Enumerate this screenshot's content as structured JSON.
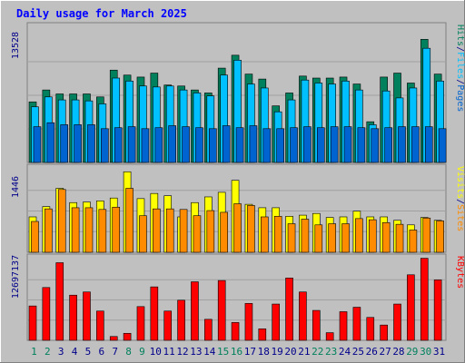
{
  "chart_data": {
    "type": "bar",
    "title": "Daily usage for March 2025",
    "categories": [
      "1",
      "2",
      "3",
      "4",
      "5",
      "6",
      "7",
      "8",
      "9",
      "10",
      "11",
      "12",
      "13",
      "14",
      "15",
      "16",
      "17",
      "18",
      "19",
      "20",
      "21",
      "22",
      "23",
      "24",
      "25",
      "26",
      "27",
      "28",
      "29",
      "30",
      "31"
    ],
    "weekend_days": [
      "1",
      "2",
      "8",
      "9",
      "15",
      "16",
      "22",
      "23",
      "29",
      "30"
    ],
    "panels": [
      {
        "id": "hits-files-pages",
        "ymax_label": "13528",
        "ymax": 13528,
        "side_labels": [
          "Pages",
          "Files",
          "Hits"
        ],
        "series": [
          {
            "name": "Hits",
            "color": "#00805c",
            "values": [
              6100,
              7300,
              6900,
              6900,
              6900,
              6600,
              9300,
              8800,
              8600,
              9000,
              7800,
              7700,
              7300,
              7000,
              9500,
              10800,
              8900,
              8400,
              5700,
              7000,
              8700,
              8500,
              8500,
              8600,
              7900,
              4100,
              8600,
              9000,
              8000,
              12400,
              8900
            ]
          },
          {
            "name": "Files",
            "color": "#00c0ff",
            "values": [
              5600,
              6600,
              6300,
              6300,
              6200,
              5900,
              8500,
              8200,
              7700,
              7600,
              7700,
              7300,
              7000,
              6700,
              8800,
              10300,
              7900,
              7500,
              5100,
              6300,
              8300,
              8000,
              7900,
              8200,
              7300,
              3800,
              7200,
              6500,
              7500,
              11500,
              8200
            ]
          },
          {
            "name": "Pages",
            "color": "#0064d0",
            "values": [
              3600,
              4000,
              3800,
              3800,
              3800,
              3400,
              3500,
              3600,
              3400,
              3500,
              3700,
              3600,
              3500,
              3400,
              3700,
              3500,
              3700,
              3400,
              3400,
              3500,
              3600,
              3500,
              3600,
              3600,
              3500,
              3400,
              3500,
              3600,
              3600,
              3600,
              3400
            ]
          }
        ]
      },
      {
        "id": "visits-sites",
        "ymax_label": "1446",
        "ymax": 1446,
        "side_labels": [
          "Sites",
          "Visits"
        ],
        "series": [
          {
            "name": "Visits",
            "color": "#ffff00",
            "values": [
              620,
              800,
              1120,
              870,
              880,
              900,
              950,
              1410,
              940,
              1030,
              990,
              620,
              870,
              970,
              1050,
              1260,
              840,
              780,
              780,
              630,
              650,
              680,
              610,
              620,
              720,
              620,
              620,
              560,
              480,
              610,
              560
            ]
          },
          {
            "name": "Sites",
            "color": "#ff8c00",
            "values": [
              540,
              760,
              1100,
              780,
              780,
              750,
              790,
              1120,
              640,
              760,
              760,
              750,
              640,
              730,
              700,
              850,
              820,
              620,
              630,
              500,
              580,
              480,
              500,
              500,
              590,
              570,
              520,
              490,
              390,
              600,
              550
            ]
          }
        ]
      },
      {
        "id": "kbytes",
        "ymax_label": "12697137",
        "ymax": 12697137,
        "side_labels": [
          "KBytes"
        ],
        "series": [
          {
            "name": "KBytes",
            "color": "#ff0000",
            "values": [
              5400000,
              8300000,
              12200000,
              7100000,
              7600000,
              4600000,
              600000,
              1100000,
              5300000,
              8400000,
              4600000,
              6300000,
              9200000,
              3300000,
              9400000,
              2800000,
              5800000,
              1800000,
              5700000,
              9800000,
              7600000,
              4700000,
              1200000,
              4500000,
              5200000,
              3600000,
              2400000,
              5700000,
              10300000,
              12900000,
              9500000
            ]
          }
        ]
      }
    ],
    "colors": {
      "background": "#c0c0c0",
      "frame": "#e0e0e0",
      "title": "#0000ff",
      "weekday_label": "#00008b",
      "weekend_label": "#00805c",
      "ylabel": "#00008b",
      "divider": "#00008b"
    }
  }
}
